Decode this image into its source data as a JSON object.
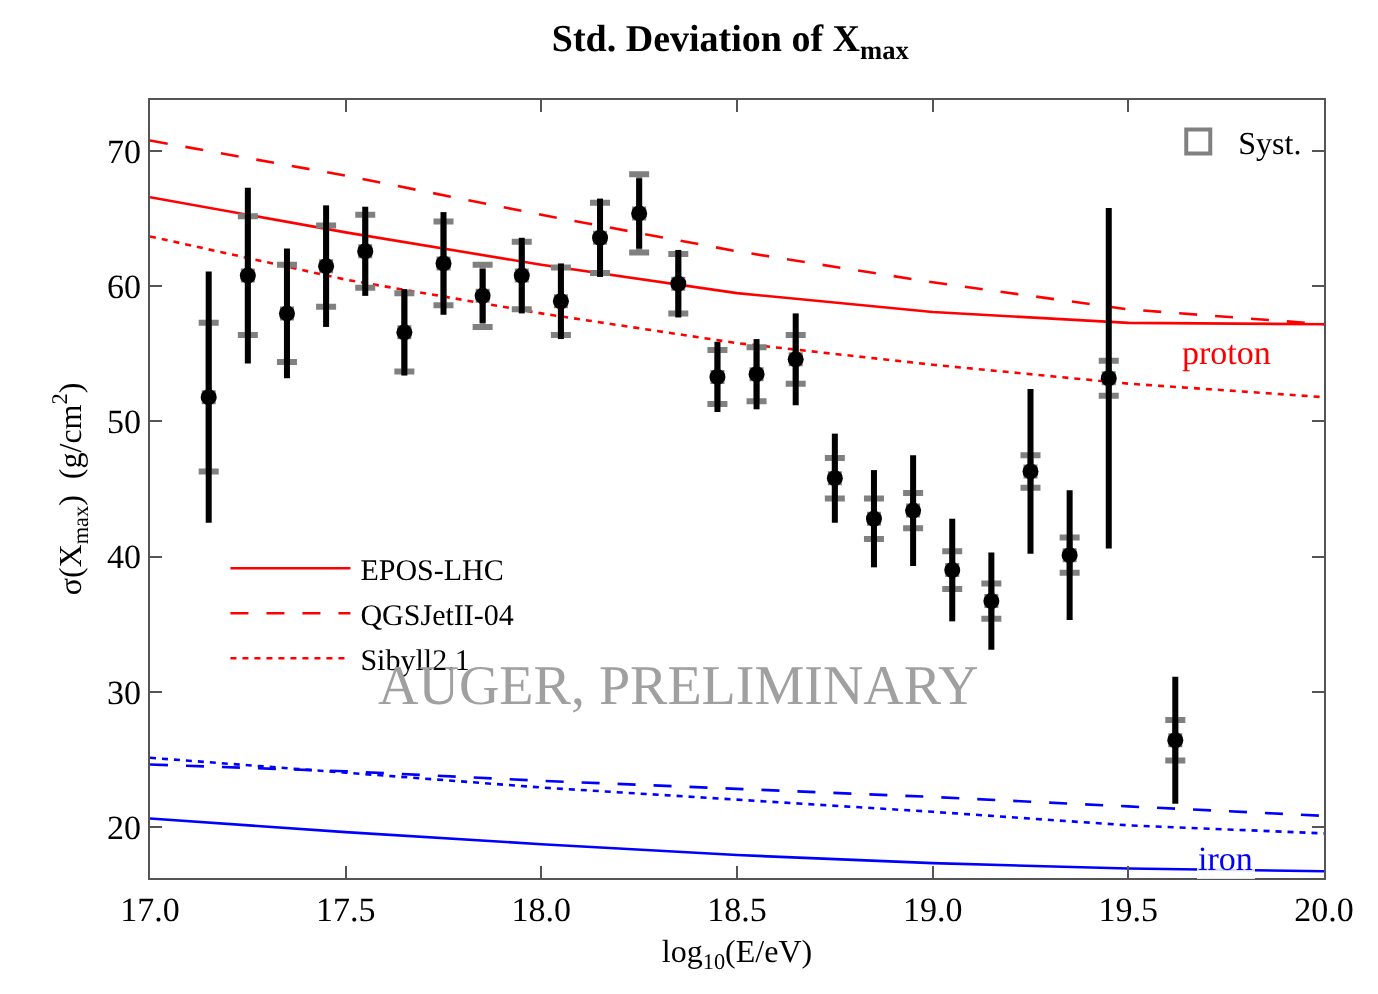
{
  "chart_data": {
    "type": "scatter",
    "title": "Std. Deviation of X$_{max}$",
    "xlabel": "log$_{10}$(E/eV)",
    "ylabel": "σ(X$_{max}$)  (g/cm$^{2}$)",
    "x": [
      17.15,
      17.25,
      17.35,
      17.45,
      17.55,
      17.65,
      17.75,
      17.85,
      17.95,
      18.05,
      18.15,
      18.25,
      18.35,
      18.45,
      18.55,
      18.65,
      18.75,
      18.85,
      18.95,
      19.05,
      19.15,
      19.25,
      19.35,
      19.45,
      19.62
    ],
    "xlim": [
      17.0,
      20.0
    ],
    "xticks": [
      {
        "value": 17,
        "label": "17.0"
      },
      {
        "value": 17.5,
        "label": "17.5"
      },
      {
        "value": 18,
        "label": "18.0"
      },
      {
        "value": 18.5,
        "label": "18.5"
      },
      {
        "value": 19,
        "label": "19.0"
      },
      {
        "value": 19.5,
        "label": "19.5"
      },
      {
        "value": 20,
        "label": "20.0"
      }
    ],
    "ylim": [
      16.2,
      73.8
    ],
    "yticks": [
      20,
      30,
      40,
      50,
      60,
      70
    ],
    "legend": "top right",
    "series": [
      {
        "color": "#000000",
        "marker": "circle",
        "values": [
          51.8,
          60.8,
          58.0,
          61.5,
          62.6,
          56.6,
          61.7,
          59.3,
          60.8,
          58.9,
          63.6,
          65.4,
          60.2,
          53.3,
          53.5,
          54.6,
          45.8,
          42.8,
          43.4,
          39.0,
          36.7,
          46.3,
          40.1,
          53.2,
          26.4
        ],
        "errors": [
          9.3,
          6.5,
          4.8,
          4.5,
          3.3,
          3.2,
          3.8,
          2.0,
          2.8,
          2.8,
          2.9,
          2.6,
          2.5,
          2.6,
          2.6,
          3.4,
          3.3,
          3.6,
          4.1,
          3.8,
          3.6,
          6.1,
          4.8,
          12.6,
          4.7
        ]
      },
      {
        "name": "Syst.",
        "color": "#808080",
        "marker": "square",
        "values": [
          51.8,
          60.8,
          58.0,
          61.5,
          62.6,
          56.6,
          61.7,
          59.3,
          60.8,
          58.9,
          63.6,
          65.4,
          60.2,
          53.3,
          53.5,
          54.6,
          45.8,
          42.8,
          43.4,
          39.0,
          36.7,
          46.3,
          40.1,
          53.2,
          26.4
        ],
        "errors": [
          5.5,
          4.4,
          3.6,
          3.0,
          2.7,
          2.9,
          3.1,
          2.3,
          2.5,
          2.5,
          2.6,
          2.9,
          2.2,
          2.0,
          2.0,
          1.8,
          1.5,
          1.5,
          1.3,
          1.4,
          1.3,
          1.2,
          1.3,
          1.3,
          1.5
        ]
      },
      {
        "type": "line",
        "name": "EPOS-LHC",
        "color": "#ff0000",
        "line_style": "solid",
        "x": [
          17,
          17.5,
          18,
          18.5,
          19,
          19.5,
          20
        ],
        "values": [
          66.6,
          64.0,
          61.6,
          59.5,
          58.1,
          57.3,
          57.2
        ]
      },
      {
        "type": "line",
        "name": "QGSJetII-04",
        "color": "#ff0000",
        "line_style": "dashed",
        "x": [
          17,
          17.5,
          18,
          18.5,
          19,
          19.5,
          20
        ],
        "values": [
          70.8,
          68.2,
          65.3,
          62.6,
          60.3,
          58.3,
          57.2
        ]
      },
      {
        "type": "line",
        "name": "Sibyll2.1",
        "color": "#ff0000",
        "line_style": "dotted",
        "x": [
          17,
          17.5,
          18,
          18.5,
          19,
          19.5,
          20
        ],
        "values": [
          63.7,
          60.5,
          58.0,
          55.8,
          54.2,
          52.8,
          51.8
        ]
      },
      {
        "type": "line",
        "color": "#0000ff",
        "line_style": "solid",
        "x": [
          17,
          17.5,
          18,
          18.5,
          19,
          19.5,
          20
        ],
        "values": [
          20.6,
          19.6,
          18.7,
          17.9,
          17.3,
          16.9,
          16.7
        ]
      },
      {
        "type": "line",
        "color": "#0000ff",
        "line_style": "dashed",
        "x": [
          17,
          17.5,
          18,
          18.5,
          19,
          19.5,
          20
        ],
        "values": [
          24.6,
          24.1,
          23.4,
          22.8,
          22.2,
          21.5,
          20.8
        ]
      },
      {
        "type": "line",
        "color": "#0000ff",
        "line_style": "dotted",
        "x": [
          17,
          17.5,
          18,
          18.5,
          19,
          19.5,
          20
        ],
        "values": [
          25.1,
          24.0,
          22.9,
          22.0,
          21.1,
          20.1,
          19.5
        ]
      }
    ],
    "annotations": [
      {
        "text": "proton",
        "x": 19.75,
        "y": 57.2
      },
      {
        "text": "iron",
        "x": 19.75,
        "y": 19.8
      },
      "AUGER, PRELIMINARY"
    ]
  }
}
